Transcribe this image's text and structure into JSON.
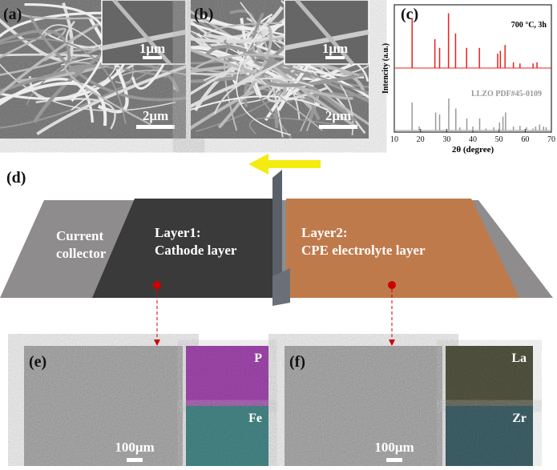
{
  "panel_a": {
    "label": "(a)",
    "scale_inset": "1μm",
    "scale_main": "2μm"
  },
  "panel_b": {
    "label": "(b)",
    "scale_inset": "1μm",
    "scale_main": "2μm"
  },
  "chart_data": {
    "type": "stick",
    "panel_label": "(c)",
    "annotation": "700 °C, 3h",
    "reference_label": "LLZO PDF#45-0109",
    "xlabel": "2θ (degree)",
    "ylabel": "Intencity (a.u.)",
    "xlim": [
      10,
      70
    ],
    "xticks": [
      10,
      20,
      30,
      40,
      50,
      60,
      70
    ],
    "measured": {
      "color": "#e8201c",
      "x": [
        16.8,
        25.5,
        27.3,
        30.7,
        33.4,
        37.6,
        42.5,
        49.5,
        50.5,
        52.3,
        55.5,
        58,
        63,
        64.5
      ],
      "values": [
        85,
        50,
        35,
        95,
        60,
        35,
        35,
        25,
        30,
        40,
        10,
        8,
        8,
        10
      ]
    },
    "reference": {
      "color": "#9a9a9a",
      "x": [
        16.8,
        19.5,
        25.8,
        27.3,
        30.8,
        33.5,
        35,
        37.7,
        40,
        42.6,
        45,
        48,
        50.2,
        51.5,
        52.5,
        55.5,
        58,
        60.5,
        63,
        64,
        65.5,
        67,
        68
      ],
      "values": [
        70,
        10,
        45,
        40,
        80,
        55,
        8,
        30,
        10,
        30,
        5,
        8,
        20,
        35,
        45,
        10,
        12,
        8,
        5,
        10,
        15,
        10,
        8
      ]
    }
  },
  "panel_d": {
    "label": "(d)",
    "current_collector": [
      "Current",
      "collector"
    ],
    "layer1": [
      "Layer1:",
      "Cathode layer"
    ],
    "layer2": [
      "Layer2:",
      "CPE electrolyte layer"
    ]
  },
  "panel_e": {
    "label": "(e)",
    "scale": "100μm",
    "maps": [
      "P",
      "Fe"
    ]
  },
  "panel_f": {
    "label": "(f)",
    "scale": "100μm",
    "maps": [
      "La",
      "Zr"
    ]
  }
}
